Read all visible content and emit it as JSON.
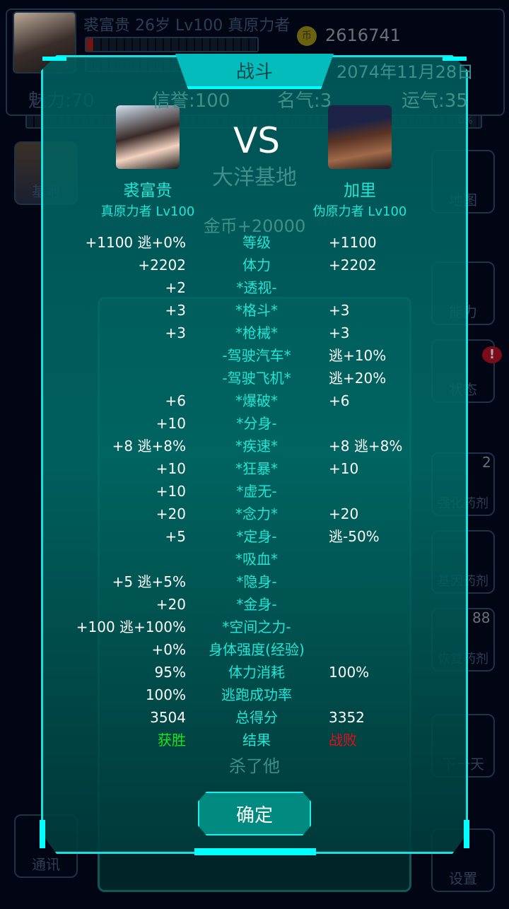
{
  "background": {
    "player_line": "裘富贵 26岁 Lv100 真原力者",
    "coins": "2616741",
    "coin_icon": "币",
    "date": "2074年11月28日",
    "stats": [
      "魅力:70",
      "信誉:100",
      "名气:3",
      "运气:35"
    ],
    "progress_label": "0%",
    "location": "大洋基地",
    "reward": "金币+20000",
    "left_sidebar": [
      "基地",
      "通讯"
    ],
    "right_sidebar": [
      {
        "label": "地图"
      },
      {
        "label": "能力"
      },
      {
        "label": "状态",
        "alert": "!"
      },
      {
        "label": "强化药剂",
        "count": "2"
      },
      {
        "label": "基因药剂"
      },
      {
        "label": "恢复药剂",
        "count": "88"
      },
      {
        "label": "下一天"
      },
      {
        "label": "设置"
      }
    ],
    "kill_button": "杀了他"
  },
  "dialog": {
    "title": "战斗",
    "vs": "VS",
    "player": {
      "name": "裘富贵",
      "rank": "真原力者 Lv100"
    },
    "enemy": {
      "name": "加里",
      "rank": "伪原力者 Lv100"
    },
    "rows": [
      {
        "left": "+1100 逃+0%",
        "label": "等级",
        "right": "+1100"
      },
      {
        "left": "+2202",
        "label": "体力",
        "right": "+2202"
      },
      {
        "left": "+2",
        "label": "*透视-",
        "right": ""
      },
      {
        "left": "+3",
        "label": "*格斗*",
        "right": "+3"
      },
      {
        "left": "+3",
        "label": "*枪械*",
        "right": "+3"
      },
      {
        "left": "",
        "label": "-驾驶汽车*",
        "right": "逃+10%"
      },
      {
        "left": "",
        "label": "-驾驶飞机*",
        "right": "逃+20%"
      },
      {
        "left": "+6",
        "label": "*爆破*",
        "right": "+6"
      },
      {
        "left": "+10",
        "label": "*分身-",
        "right": ""
      },
      {
        "left": "+8 逃+8%",
        "label": "*疾速*",
        "right": "+8 逃+8%"
      },
      {
        "left": "+10",
        "label": "*狂暴*",
        "right": "+10"
      },
      {
        "left": "+10",
        "label": "*虚无-",
        "right": ""
      },
      {
        "left": "+20",
        "label": "*念力*",
        "right": "+20"
      },
      {
        "left": "+5",
        "label": "*定身-",
        "right": "逃-50%"
      },
      {
        "left": "",
        "label": "*吸血*",
        "right": ""
      },
      {
        "left": "+5 逃+5%",
        "label": "*隐身-",
        "right": ""
      },
      {
        "left": "+20",
        "label": "*金身-",
        "right": ""
      },
      {
        "left": "+100 逃+100%",
        "label": "*空间之力-",
        "right": ""
      },
      {
        "left": "+0%",
        "label": "身体强度(经验)",
        "right": ""
      },
      {
        "left": "95%",
        "label": "体力消耗",
        "right": "100%"
      },
      {
        "left": "100%",
        "label": "逃跑成功率",
        "right": ""
      },
      {
        "left": "3504",
        "label": "总得分",
        "right": "3352"
      },
      {
        "left": "获胜",
        "label": "结果",
        "right": "战败"
      }
    ],
    "win_color": "#19e619",
    "lose_color": "#e0101a",
    "confirm": "确定"
  }
}
